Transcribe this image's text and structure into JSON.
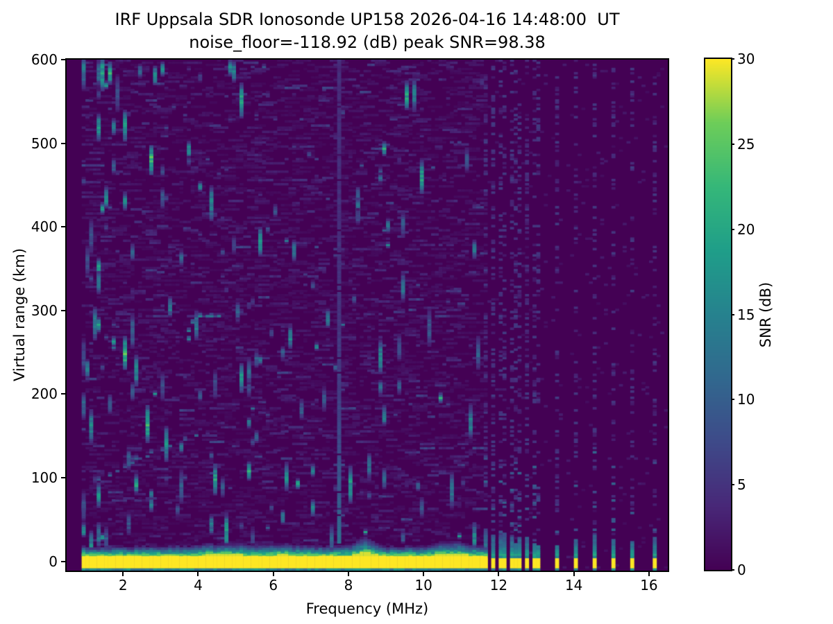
{
  "title": {
    "line1": "IRF Uppsala SDR Ionosonde UP158 2026-04-16 14:48:00  UT",
    "line2": "noise_floor=-118.92 (dB) peak SNR=98.38"
  },
  "chart_data": {
    "type": "heatmap",
    "title": "IRF Uppsala SDR Ionosonde UP158 2026-04-16 14:48:00  UT",
    "subtitle": "noise_floor=-118.92 (dB) peak SNR=98.38",
    "station": "IRF Uppsala SDR Ionosonde UP158",
    "timestamp_ut": "2026-04-16 14:48:00",
    "noise_floor_db": -118.92,
    "peak_snr_db": 98.38,
    "xlabel": "Frequency (MHz)",
    "ylabel": "Virtual range (km)",
    "xlim": [
      0.5,
      16.5
    ],
    "ylim": [
      -11,
      600
    ],
    "xticks": [
      2,
      4,
      6,
      8,
      10,
      12,
      14,
      16
    ],
    "yticks": [
      0,
      100,
      200,
      300,
      400,
      500,
      600
    ],
    "colorbar": {
      "label": "SNR (dB)",
      "min": 0,
      "max": 30,
      "ticks": [
        0,
        5,
        10,
        15,
        20,
        25,
        30
      ],
      "colormap": "viridis"
    },
    "grid": {
      "f_step_mhz": 0.1,
      "range_step_km": 2.5
    },
    "sweep": {
      "f_start_mhz": 0.9,
      "f_stop_mhz": 11.65
    },
    "features": {
      "ground_pulse_band": {
        "f_range_mhz": [
          0.9,
          11.65
        ],
        "km_range": [
          -8.5,
          6.5
        ],
        "snr_db": 30
      },
      "band_underline": {
        "km": -10,
        "snr_db": 15
      },
      "band_fringe": {
        "km_range": [
          8,
          20
        ],
        "snr_range_db": [
          3,
          26
        ],
        "bump_centers_mhz": [
          8.45,
          10.75,
          4.7
        ]
      },
      "tx_spot_frequencies_mhz": [
        11.7,
        11.85,
        12.0,
        12.15,
        12.3,
        12.45,
        12.6,
        12.75,
        12.9,
        13.05,
        13.5,
        14.05,
        14.55,
        15.05,
        15.55,
        16.1
      ],
      "rfi_line_mhz": 7.75,
      "echo_traces": [
        {
          "snr_db": 14,
          "points_mhz_km": [
            [
              3.75,
              266
            ],
            [
              3.8,
              276
            ],
            [
              3.86,
              284
            ],
            [
              3.95,
              290
            ],
            [
              4.05,
              292
            ],
            [
              4.2,
              293
            ],
            [
              4.35,
              293
            ],
            [
              4.5,
              292
            ]
          ]
        },
        {
          "snr_db": 9,
          "points_mhz_km": [
            [
              1.4,
              98
            ],
            [
              1.6,
              103
            ],
            [
              1.8,
              108
            ],
            [
              2.0,
              113
            ],
            [
              2.2,
              118
            ],
            [
              2.4,
              122
            ],
            [
              2.6,
              126
            ],
            [
              2.8,
              129
            ],
            [
              3.0,
              132
            ],
            [
              3.3,
              138
            ],
            [
              3.6,
              144
            ],
            [
              3.9,
              150
            ]
          ]
        }
      ],
      "bright_streaks_f_km_len_snr": [
        [
          1.6,
          585,
          28,
          20
        ],
        [
          2.75,
          480,
          35,
          24
        ],
        [
          2.05,
          250,
          40,
          22
        ],
        [
          2.65,
          165,
          45,
          20
        ],
        [
          1.55,
          435,
          25,
          16
        ],
        [
          2.0,
          430,
          22,
          14
        ],
        [
          1.3,
          335,
          28,
          14
        ],
        [
          4.9,
          585,
          25,
          16
        ],
        [
          2.85,
          580,
          22,
          18
        ],
        [
          3.3,
          305,
          25,
          14
        ],
        [
          1.35,
          80,
          30,
          15
        ],
        [
          4.35,
          45,
          25,
          13
        ],
        [
          3.0,
          590,
          18,
          16
        ],
        [
          8.5,
          115,
          30,
          12
        ],
        [
          8.9,
          100,
          25,
          11
        ],
        [
          5.05,
          300,
          20,
          12
        ],
        [
          6.3,
          250,
          15,
          10
        ],
        [
          9.3,
          210,
          20,
          9
        ],
        [
          1.75,
          520,
          20,
          13
        ],
        [
          3.55,
          365,
          18,
          12
        ],
        [
          2.3,
          370,
          20,
          12
        ],
        [
          5.5,
          150,
          15,
          10
        ],
        [
          4.1,
          200,
          16,
          10
        ],
        [
          6.0,
          420,
          14,
          9
        ],
        [
          7.1,
          330,
          12,
          8
        ]
      ],
      "random_streaks": {
        "count": 120,
        "micro_count": 60,
        "seed": 1337
      }
    }
  }
}
